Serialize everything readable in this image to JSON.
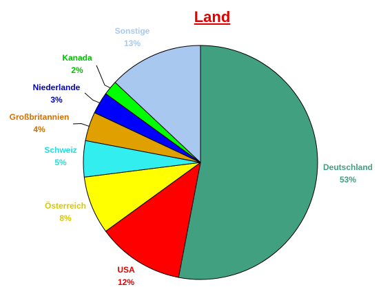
{
  "chart_data": {
    "type": "pie",
    "title": "Land",
    "categories": [
      "Deutschland",
      "USA",
      "Österreich",
      "Schweiz",
      "Großbritannien",
      "Niederlande",
      "Kanada",
      "Sonstige"
    ],
    "values": [
      53,
      12,
      8,
      5,
      4,
      3,
      2,
      13
    ],
    "value_labels": [
      "53%",
      "12%",
      "8%",
      "5%",
      "4%",
      "3%",
      "2%",
      "13%"
    ],
    "colors": [
      "#41a07f",
      "#ff0000",
      "#ffff00",
      "#33eeee",
      "#e0a000",
      "#0000ff",
      "#00ff00",
      "#a8c8f0"
    ],
    "label_colors": [
      "#41a07f",
      "#e00000",
      "#d8c800",
      "#22dddd",
      "#d07000",
      "#0000c0",
      "#00c000",
      "#a8c8f0"
    ]
  }
}
